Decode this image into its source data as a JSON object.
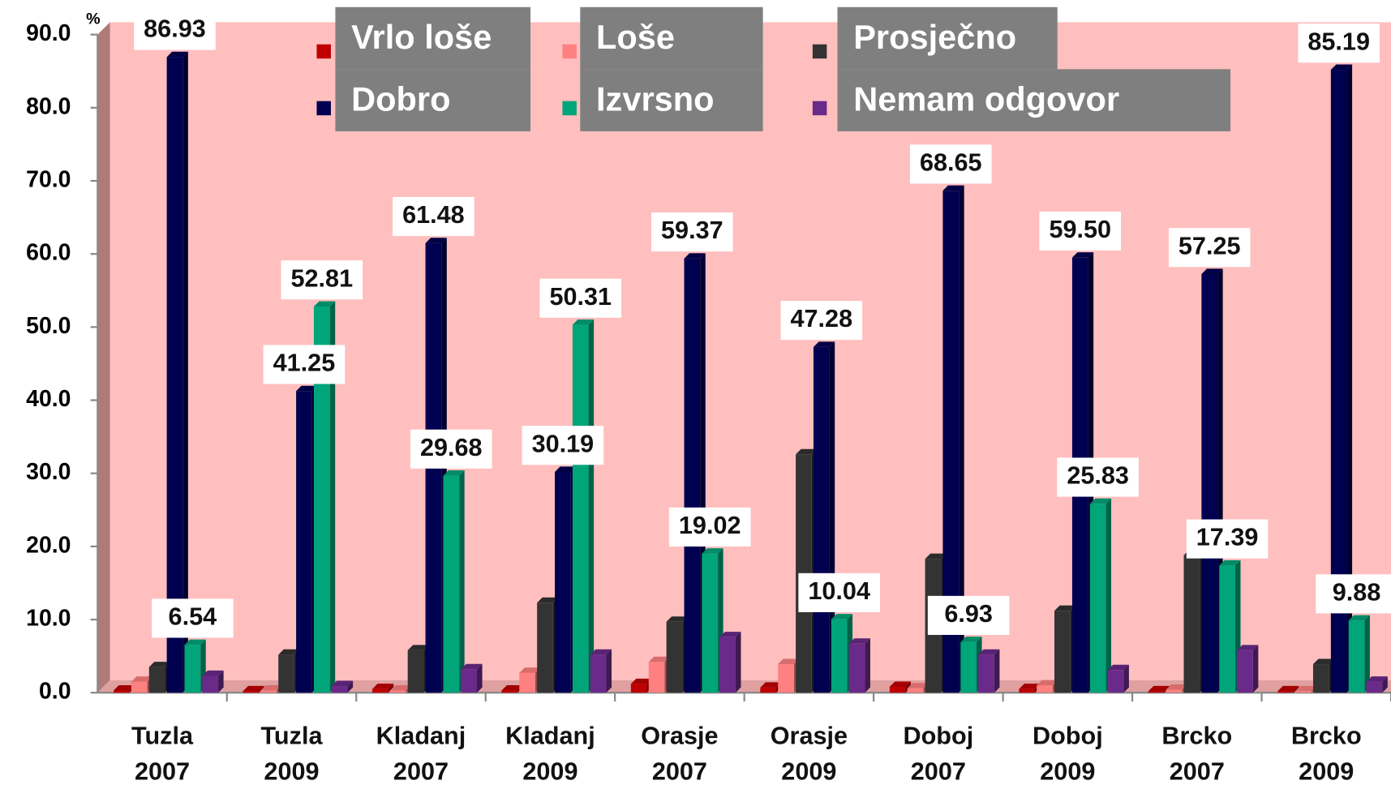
{
  "chart_data": {
    "type": "bar",
    "y_unit": "%",
    "categories": [
      "Tuzla 2007",
      "Tuzla 2009",
      "Kladanj 2007",
      "Kladanj 2009",
      "Orasje 2007",
      "Orasje 2009",
      "Doboj 2007",
      "Doboj 2009",
      "Brcko 2007",
      "Brcko 2009"
    ],
    "series": [
      {
        "name": "Vrlo loše",
        "color": "#c00000",
        "values": [
          0.3,
          0.2,
          0.5,
          0.3,
          1.2,
          0.7,
          0.8,
          0.5,
          0.2,
          0.2
        ]
      },
      {
        "name": "Loše",
        "color": "#ff8080",
        "values": [
          1.5,
          0.3,
          0.3,
          2.7,
          4.2,
          3.9,
          0.6,
          1.0,
          0.4,
          0.2
        ]
      },
      {
        "name": "Prosječno",
        "color": "#333333",
        "values": [
          3.5,
          5.2,
          5.8,
          12.3,
          9.7,
          32.6,
          18.3,
          11.2,
          18.8,
          3.9
        ]
      },
      {
        "name": "Dobro",
        "color": "#000050",
        "values": [
          86.93,
          41.25,
          61.48,
          30.19,
          59.37,
          47.28,
          68.65,
          59.5,
          57.25,
          85.19
        ],
        "value_labels": [
          "86.93",
          "41.25",
          "61.48",
          "30.19",
          "59.37",
          "47.28",
          "68.65",
          "59.50",
          "57.25",
          "85.19"
        ]
      },
      {
        "name": "Izvrsno",
        "color": "#00a57a",
        "values": [
          6.54,
          52.81,
          29.68,
          50.31,
          19.02,
          10.04,
          6.93,
          25.83,
          17.39,
          9.88
        ],
        "value_labels": [
          "6.54",
          "52.81",
          "29.68",
          "50.31",
          "19.02",
          "10.04",
          "6.93",
          "25.83",
          "17.39",
          "9.88"
        ]
      },
      {
        "name": "Nemam odgovor",
        "color": "#6a2a8a",
        "values": [
          2.3,
          0.9,
          3.2,
          5.2,
          7.6,
          6.7,
          5.2,
          3.1,
          5.8,
          1.5
        ]
      }
    ],
    "ylim": [
      0,
      90
    ],
    "yticks": [
      {
        "value": 0,
        "label": "0.0"
      },
      {
        "value": 10,
        "label": "10.0"
      },
      {
        "value": 20,
        "label": "20.0"
      },
      {
        "value": 30,
        "label": "30.0"
      },
      {
        "value": 40,
        "label": "40.0"
      },
      {
        "value": 50,
        "label": "50.0"
      },
      {
        "value": 60,
        "label": "60.0"
      },
      {
        "value": 70,
        "label": "70.0"
      },
      {
        "value": 80,
        "label": "80.0"
      },
      {
        "value": 90,
        "label": "90.0"
      }
    ]
  }
}
